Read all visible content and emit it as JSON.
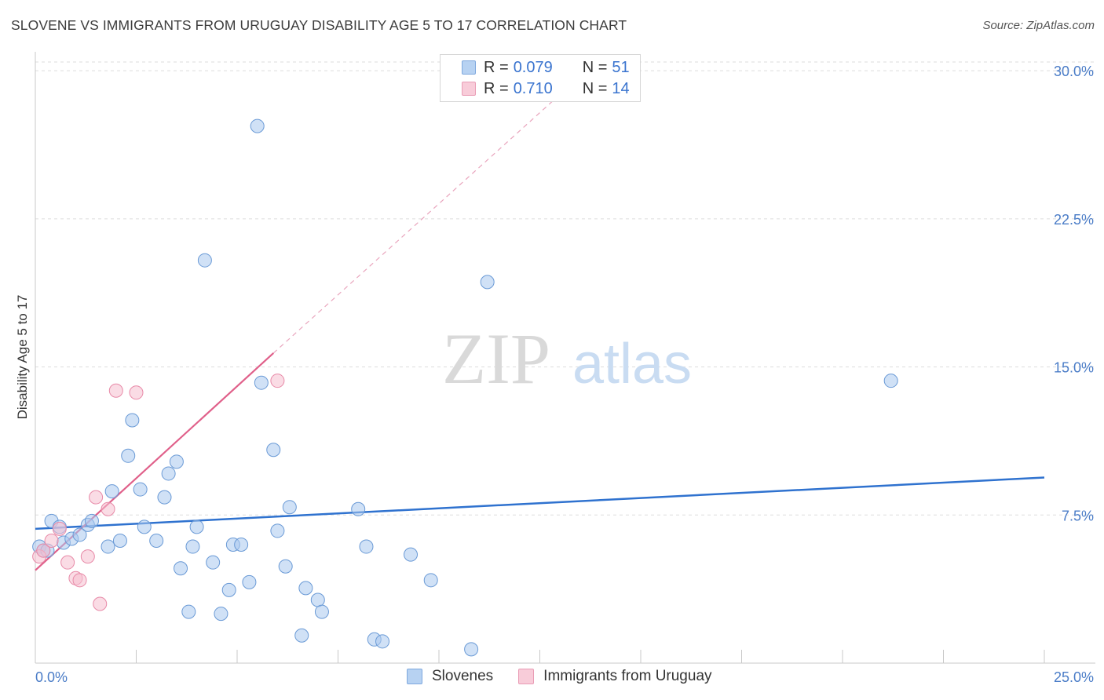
{
  "title": "SLOVENE VS IMMIGRANTS FROM URUGUAY DISABILITY AGE 5 TO 17 CORRELATION CHART",
  "source": "Source: ZipAtlas.com",
  "watermark": {
    "zip": "ZIP",
    "atlas": "atlas"
  },
  "colors": {
    "blue_fill": "#a9c8ee",
    "blue_stroke": "#6a9ad6",
    "blue_line": "#2f72cf",
    "pink_fill": "#f6c0d0",
    "pink_stroke": "#e88aa8",
    "pink_line": "#e0608a",
    "tick_text": "#4a7cc7",
    "grid": "#dddddd"
  },
  "legend": {
    "rows": [
      {
        "r_label": "R =",
        "r_value": "0.079",
        "n_label": "N =",
        "n_value": "51"
      },
      {
        "r_label": "R =",
        "r_value": "0.710",
        "n_label": "N =",
        "n_value": "14"
      }
    ]
  },
  "bottom_legend": [
    "Slovenes",
    "Immigrants from Uruguay"
  ],
  "chart_data": {
    "type": "scatter",
    "title": "SLOVENE VS IMMIGRANTS FROM URUGUAY DISABILITY AGE 5 TO 17 CORRELATION CHART",
    "xlabel": "",
    "ylabel": "Disability Age 5 to 17",
    "xlim": [
      0,
      25
    ],
    "ylim": [
      0,
      30.8
    ],
    "x_tick_labels": [
      "0.0%",
      "25.0%"
    ],
    "y_ticks": [
      7.5,
      15.0,
      22.5,
      30.0
    ],
    "y_tick_labels": [
      "7.5%",
      "15.0%",
      "22.5%",
      "30.0%"
    ],
    "grid": true,
    "series": [
      {
        "name": "Slovenes",
        "r": 0.079,
        "n": 51,
        "trend": {
          "x": [
            0,
            25
          ],
          "y": [
            6.8,
            9.4
          ]
        },
        "points": [
          [
            0.1,
            5.9
          ],
          [
            0.2,
            5.7
          ],
          [
            0.3,
            5.7
          ],
          [
            0.4,
            7.2
          ],
          [
            0.6,
            6.9
          ],
          [
            0.7,
            6.1
          ],
          [
            0.9,
            6.3
          ],
          [
            1.1,
            6.5
          ],
          [
            1.3,
            7.0
          ],
          [
            1.4,
            7.2
          ],
          [
            1.8,
            5.9
          ],
          [
            1.9,
            8.7
          ],
          [
            2.1,
            6.2
          ],
          [
            2.3,
            10.5
          ],
          [
            2.4,
            12.3
          ],
          [
            2.6,
            8.8
          ],
          [
            2.7,
            6.9
          ],
          [
            3.0,
            6.2
          ],
          [
            3.2,
            8.4
          ],
          [
            3.3,
            9.6
          ],
          [
            3.5,
            10.2
          ],
          [
            3.6,
            4.8
          ],
          [
            3.8,
            2.6
          ],
          [
            3.9,
            5.9
          ],
          [
            4.0,
            6.9
          ],
          [
            4.2,
            20.4
          ],
          [
            4.4,
            5.1
          ],
          [
            4.6,
            2.5
          ],
          [
            4.8,
            3.7
          ],
          [
            4.9,
            6.0
          ],
          [
            5.1,
            6.0
          ],
          [
            5.3,
            4.1
          ],
          [
            5.5,
            27.2
          ],
          [
            5.6,
            14.2
          ],
          [
            5.9,
            10.8
          ],
          [
            6.0,
            6.7
          ],
          [
            6.2,
            4.9
          ],
          [
            6.3,
            7.9
          ],
          [
            6.6,
            1.4
          ],
          [
            6.7,
            3.8
          ],
          [
            7.0,
            3.2
          ],
          [
            7.1,
            2.6
          ],
          [
            8.0,
            7.8
          ],
          [
            8.2,
            5.9
          ],
          [
            8.4,
            1.2
          ],
          [
            8.6,
            1.1
          ],
          [
            9.3,
            5.5
          ],
          [
            9.8,
            4.2
          ],
          [
            10.8,
            0.7
          ],
          [
            11.2,
            19.3
          ],
          [
            21.2,
            14.3
          ]
        ]
      },
      {
        "name": "Immigrants from Uruguay",
        "r": 0.71,
        "n": 14,
        "trend": {
          "x": [
            0,
            5.9
          ],
          "y": [
            4.7,
            15.7
          ]
        },
        "trend_dashed": {
          "x": [
            5.9,
            13.0
          ],
          "y": [
            15.7,
            28.8
          ]
        },
        "points": [
          [
            0.1,
            5.4
          ],
          [
            0.2,
            5.7
          ],
          [
            0.4,
            6.2
          ],
          [
            0.6,
            6.8
          ],
          [
            0.8,
            5.1
          ],
          [
            1.0,
            4.3
          ],
          [
            1.1,
            4.2
          ],
          [
            1.3,
            5.4
          ],
          [
            1.5,
            8.4
          ],
          [
            1.6,
            3.0
          ],
          [
            1.8,
            7.8
          ],
          [
            2.0,
            13.8
          ],
          [
            2.5,
            13.7
          ],
          [
            6.0,
            14.3
          ]
        ]
      }
    ]
  }
}
